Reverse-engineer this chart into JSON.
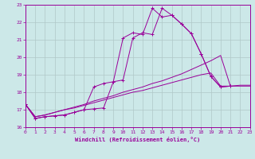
{
  "xlabel": "Windchill (Refroidissement éolien,°C)",
  "xlim": [
    0,
    23
  ],
  "ylim": [
    16,
    23
  ],
  "yticks": [
    16,
    17,
    18,
    19,
    20,
    21,
    22,
    23
  ],
  "xticks": [
    0,
    1,
    2,
    3,
    4,
    5,
    6,
    7,
    8,
    9,
    10,
    11,
    12,
    13,
    14,
    15,
    16,
    17,
    18,
    19,
    20,
    21,
    22,
    23
  ],
  "bg_color": "#cce8e8",
  "line_color": "#990099",
  "grid_color": "#b0c8c8",
  "line1": {
    "x": [
      0,
      1,
      2,
      3,
      4,
      5,
      6,
      7,
      8,
      9,
      10,
      11,
      12,
      13,
      14,
      15,
      16,
      17,
      18,
      19,
      20,
      21,
      22,
      23
    ],
    "y": [
      17.3,
      16.5,
      16.6,
      16.65,
      16.7,
      16.85,
      17.0,
      18.3,
      18.5,
      18.6,
      21.1,
      21.4,
      21.3,
      22.8,
      22.3,
      22.4,
      21.9,
      21.35,
      20.2,
      18.9,
      18.3,
      18.35,
      null,
      null
    ]
  },
  "line2": {
    "x": [
      0,
      1,
      2,
      3,
      4,
      5,
      6,
      7,
      8,
      9,
      10,
      11,
      12,
      13,
      14,
      15,
      16,
      17,
      18,
      19,
      20,
      21,
      22,
      23
    ],
    "y": [
      17.3,
      16.5,
      16.6,
      16.65,
      16.7,
      16.85,
      17.0,
      17.05,
      17.1,
      18.6,
      18.7,
      21.1,
      21.4,
      21.3,
      22.8,
      22.4,
      21.9,
      21.35,
      20.2,
      18.9,
      18.3,
      18.35,
      null,
      null
    ]
  },
  "line3": {
    "x": [
      0,
      1,
      2,
      3,
      4,
      5,
      6,
      7,
      8,
      9,
      10,
      11,
      12,
      13,
      14,
      15,
      16,
      17,
      18,
      19,
      20,
      21,
      22,
      23
    ],
    "y": [
      17.3,
      16.6,
      16.7,
      16.85,
      17.0,
      17.15,
      17.3,
      17.5,
      17.65,
      17.8,
      18.0,
      18.15,
      18.3,
      18.5,
      18.65,
      18.85,
      19.05,
      19.3,
      19.55,
      19.8,
      20.1,
      18.35,
      18.4,
      18.4
    ]
  },
  "line4": {
    "x": [
      0,
      1,
      2,
      3,
      4,
      5,
      6,
      7,
      8,
      9,
      10,
      11,
      12,
      13,
      14,
      15,
      16,
      17,
      18,
      19,
      20,
      21,
      22,
      23
    ],
    "y": [
      17.3,
      16.6,
      16.7,
      16.85,
      17.0,
      17.1,
      17.25,
      17.4,
      17.55,
      17.7,
      17.85,
      18.0,
      18.1,
      18.25,
      18.4,
      18.55,
      18.7,
      18.85,
      19.0,
      19.1,
      18.35,
      18.35,
      18.35,
      18.35
    ]
  }
}
